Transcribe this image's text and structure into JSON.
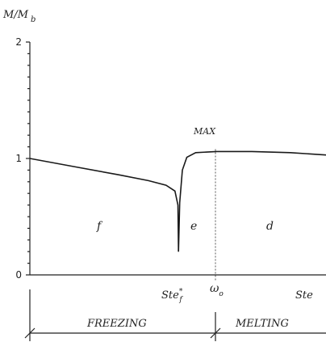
{
  "chart_data": {
    "type": "line",
    "ylabel": "M/M",
    "ylabel_sub": "b",
    "y_ticks": [
      {
        "value": 0,
        "label": "0"
      },
      {
        "value": 1,
        "label": "1"
      },
      {
        "value": 2,
        "label": "2"
      }
    ],
    "ylim": [
      0,
      2
    ],
    "x_markers": [
      {
        "name": "ste_f",
        "label": "Ste",
        "sup": "*",
        "sub": "f",
        "dashed": false
      },
      {
        "name": "omega_o",
        "label": "ω",
        "sub": "o",
        "dashed": true
      },
      {
        "name": "ste",
        "label": "Ste",
        "dashed": false
      }
    ],
    "annotations": [
      "MAX"
    ],
    "regions": [
      {
        "label": "f"
      },
      {
        "label": "e"
      },
      {
        "label": "d"
      }
    ],
    "series": [
      {
        "freezing_branch": [
          [
            0.0,
            1.0
          ],
          [
            0.15,
            0.93
          ],
          [
            0.3,
            0.86
          ],
          [
            0.4,
            0.81
          ],
          [
            0.46,
            0.77
          ],
          [
            0.49,
            0.72
          ],
          [
            0.5,
            0.6
          ],
          [
            0.502,
            0.2
          ]
        ],
        "melting_branch": [
          [
            0.502,
            0.2
          ],
          [
            0.506,
            0.62
          ],
          [
            0.515,
            0.9
          ],
          [
            0.53,
            1.01
          ],
          [
            0.56,
            1.05
          ],
          [
            0.63,
            1.06
          ],
          [
            0.75,
            1.06
          ],
          [
            0.88,
            1.05
          ],
          [
            1.0,
            1.03
          ]
        ]
      }
    ],
    "bottom_axis": {
      "left_label": "FREEZING",
      "right_label": "MELTING"
    }
  }
}
